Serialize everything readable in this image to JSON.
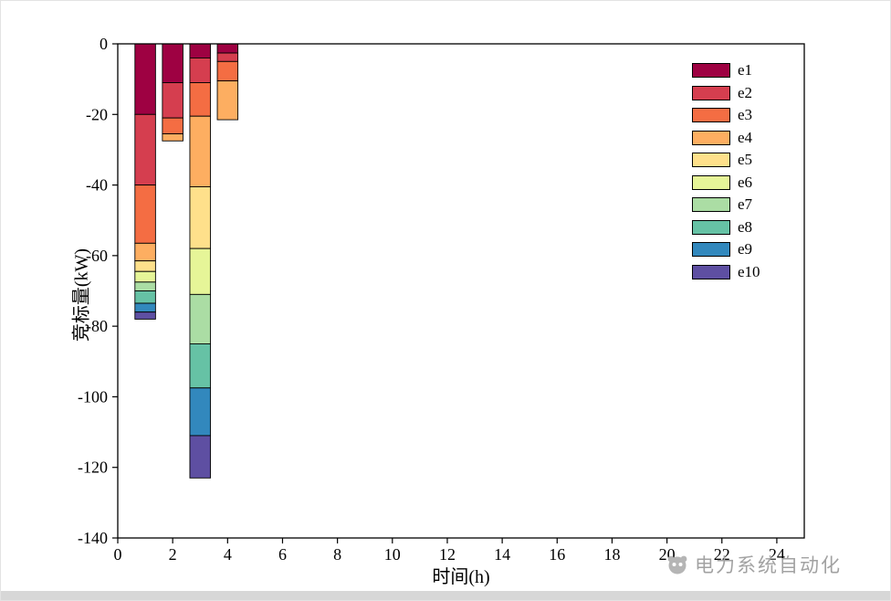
{
  "watermark": {
    "text": "电力系统自动化"
  },
  "chart_data": {
    "type": "bar",
    "stacked": true,
    "direction": "negative",
    "bar_width": 0.75,
    "title": "",
    "xlabel": "时间(h)",
    "ylabel": "竞标量(kW)",
    "xlim": [
      0,
      25
    ],
    "ylim": [
      -140,
      0
    ],
    "xticks": [
      0,
      2,
      4,
      6,
      8,
      10,
      12,
      14,
      16,
      18,
      20,
      22,
      24
    ],
    "yticks": [
      0,
      -20,
      -40,
      -60,
      -80,
      -100,
      -120,
      -140
    ],
    "grid": false,
    "legend_position": "top-right",
    "categories": [
      1,
      2,
      3,
      4
    ],
    "series": [
      {
        "name": "e1",
        "color": "#9e0142",
        "values": [
          20.0,
          11.0,
          4.0,
          2.6
        ]
      },
      {
        "name": "e2",
        "color": "#d53e4f",
        "values": [
          20.0,
          10.0,
          7.0,
          2.4
        ]
      },
      {
        "name": "e3",
        "color": "#f46d43",
        "values": [
          16.5,
          4.5,
          9.5,
          5.5
        ]
      },
      {
        "name": "e4",
        "color": "#fdae61",
        "values": [
          5.0,
          2.0,
          20.0,
          11.0
        ]
      },
      {
        "name": "e5",
        "color": "#fee08b",
        "values": [
          3.0,
          0,
          17.5,
          0
        ]
      },
      {
        "name": "e6",
        "color": "#e6f598",
        "values": [
          3.0,
          0,
          13.0,
          0
        ]
      },
      {
        "name": "e7",
        "color": "#abdda4",
        "values": [
          2.5,
          0,
          14.0,
          0
        ]
      },
      {
        "name": "e8",
        "color": "#66c2a5",
        "values": [
          3.5,
          0,
          12.5,
          0
        ]
      },
      {
        "name": "e9",
        "color": "#3288bd",
        "values": [
          2.5,
          0,
          13.5,
          0
        ]
      },
      {
        "name": "e10",
        "color": "#5e4fa2",
        "values": [
          2.0,
          0,
          12.0,
          0
        ]
      }
    ],
    "axis_color": "#000000"
  }
}
